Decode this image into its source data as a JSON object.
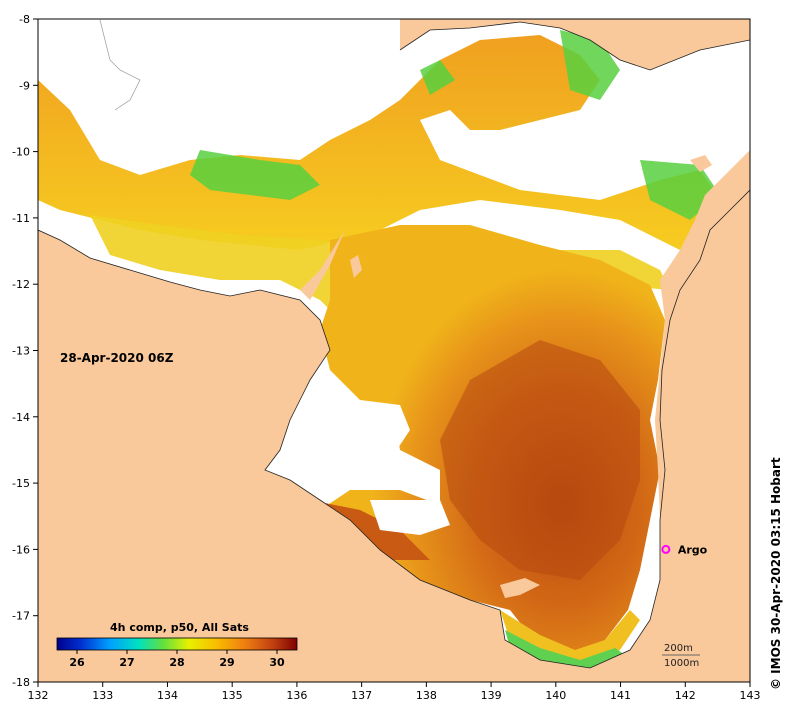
{
  "map": {
    "date_label": "28-Apr-2020 06Z",
    "credit": "© IMOS 30-Apr-2020 03:15 Hobart",
    "x_ticks": [
      "132",
      "133",
      "134",
      "135",
      "136",
      "137",
      "138",
      "139",
      "140",
      "141",
      "142",
      "143"
    ],
    "y_ticks": [
      "-8",
      "-9",
      "-10",
      "-11",
      "-12",
      "-13",
      "-14",
      "-15",
      "-16",
      "-17",
      "-18"
    ],
    "lon_range": [
      132,
      143
    ],
    "lat_range": [
      -18,
      -8
    ],
    "argo": {
      "label": "Argo",
      "lon": 141.7,
      "lat": -16.0
    },
    "colorbar": {
      "title": "4h comp, p50, All Sats",
      "ticks": [
        "26",
        "27",
        "28",
        "29",
        "30"
      ],
      "colormap": [
        "#00008f",
        "#0050ff",
        "#00c8ff",
        "#40e080",
        "#a0f020",
        "#f0f000",
        "#f8b000",
        "#e07000",
        "#b03000",
        "#7a0000"
      ]
    },
    "scale_bar": {
      "line1": "200m",
      "line2": "1000m"
    },
    "colors": {
      "land": "#f9c89b",
      "no_data": "#ffffff",
      "warm_sst": "#cf6a1a",
      "argo_marker": "#ff00ff"
    }
  }
}
